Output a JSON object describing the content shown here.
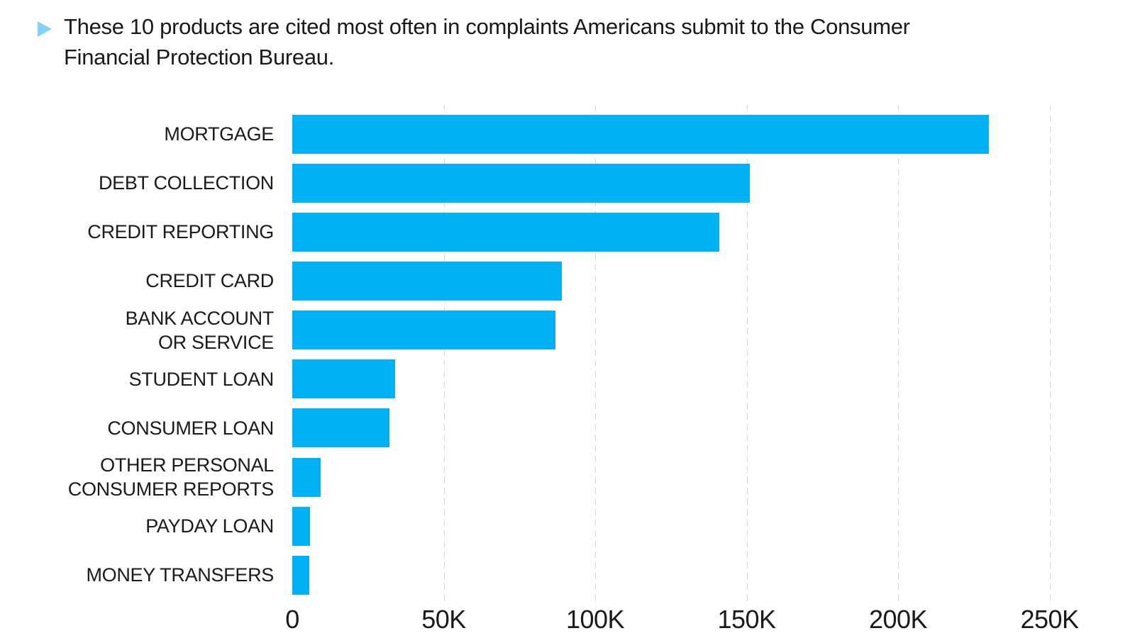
{
  "header": {
    "bullet_icon": "triangle-right-icon",
    "title": "These 10 products are cited most often in complaints Americans submit to the Consumer\nFinancial Protection Bureau."
  },
  "colors": {
    "bar": "#00b2f3",
    "bullet": "#85d2f2",
    "gridline": "#d8d8d8",
    "text": "#1a1a1a"
  },
  "chart_data": {
    "type": "bar",
    "orientation": "horizontal",
    "title": "These 10 products are cited most often in complaints Americans submit to the Consumer Financial Protection Bureau.",
    "categories": [
      "MORTGAGE",
      "DEBT COLLECTION",
      "CREDIT REPORTING",
      "CREDIT CARD",
      "BANK ACCOUNT\nOR SERVICE",
      "STUDENT LOAN",
      "CONSUMER LOAN",
      "OTHER PERSONAL\nCONSUMER REPORTS",
      "PAYDAY LOAN",
      "MONEY TRANSFERS"
    ],
    "values": [
      230000,
      151000,
      141000,
      89000,
      87000,
      34000,
      32000,
      9400,
      5800,
      5700
    ],
    "xlabel": "",
    "ylabel": "",
    "xlim": [
      0,
      269000
    ],
    "x_ticks": [
      {
        "value": 0,
        "label": "0"
      },
      {
        "value": 50000,
        "label": "50K"
      },
      {
        "value": 100000,
        "label": "100K"
      },
      {
        "value": 150000,
        "label": "150K"
      },
      {
        "value": 200000,
        "label": "200K"
      },
      {
        "value": 250000,
        "label": "250K"
      }
    ],
    "grid": "vertical dashed gridlines every 50K, drawn behind bars, none at 0",
    "legend": "none"
  }
}
